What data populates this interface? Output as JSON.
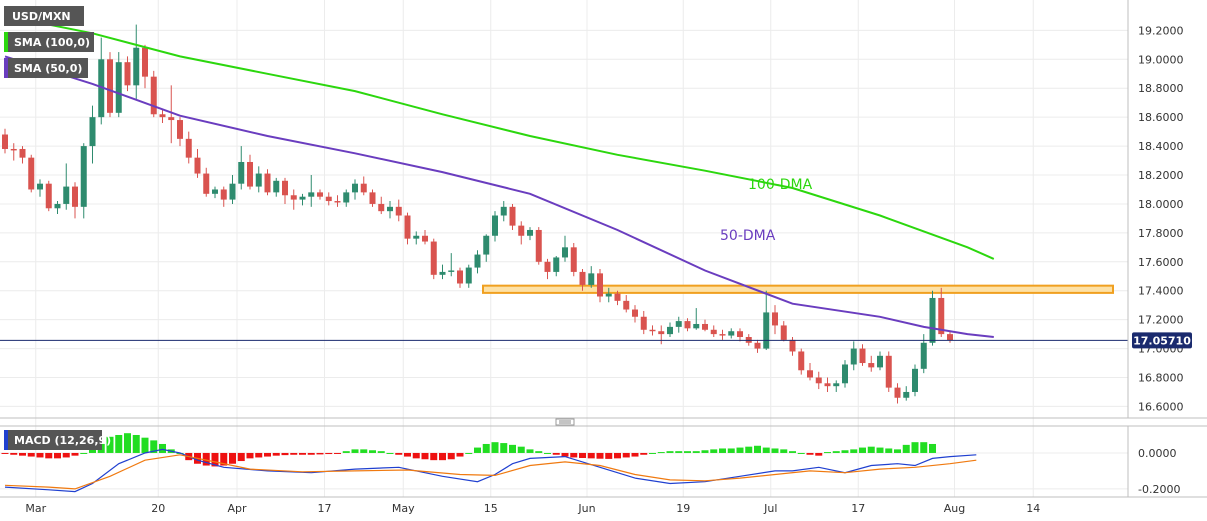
{
  "chart_data": {
    "type": "candlestick",
    "symbol": "USD/MXN",
    "indicators": {
      "sma100_label": "SMA (100,0)",
      "sma50_label": "SMA (50,0)",
      "macd_label": "MACD (12,26,9)"
    },
    "annotations": {
      "dma100": "100-DMA",
      "dma50": "50-DMA"
    },
    "last_price": 17.0571,
    "last_price_label": "17.05710",
    "price_axis": {
      "range": [
        16.52,
        19.41
      ],
      "ticks": [
        {
          "v": 19.2,
          "label": "19.2000"
        },
        {
          "v": 19.0,
          "label": "19.0000"
        },
        {
          "v": 18.8,
          "label": "18.8000"
        },
        {
          "v": 18.6,
          "label": "18.6000"
        },
        {
          "v": 18.4,
          "label": "18.4000"
        },
        {
          "v": 18.2,
          "label": "18.2000"
        },
        {
          "v": 18.0,
          "label": "18.0000"
        },
        {
          "v": 17.8,
          "label": "17.8000"
        },
        {
          "v": 17.6,
          "label": "17.6000"
        },
        {
          "v": 17.4,
          "label": "17.4000"
        },
        {
          "v": 17.2,
          "label": "17.2000"
        },
        {
          "v": 17.0,
          "label": "17.0000"
        },
        {
          "v": 16.8,
          "label": "16.8000"
        },
        {
          "v": 16.6,
          "label": "16.6000"
        }
      ]
    },
    "macd_axis": {
      "range": [
        -0.245,
        0.15
      ],
      "ticks": [
        {
          "v": 0.0,
          "label": "0.0000"
        },
        {
          "v": -0.2,
          "label": "-0.2000"
        }
      ]
    },
    "x_axis": {
      "ticks": [
        {
          "i": 1,
          "label": "Mar"
        },
        {
          "i": 15,
          "label": "20"
        },
        {
          "i": 24,
          "label": "Apr"
        },
        {
          "i": 34,
          "label": "17"
        },
        {
          "i": 43,
          "label": "May"
        },
        {
          "i": 53,
          "label": "15"
        },
        {
          "i": 64,
          "label": "Jun"
        },
        {
          "i": 75,
          "label": "19"
        },
        {
          "i": 85,
          "label": "Jul"
        },
        {
          "i": 95,
          "label": "17"
        },
        {
          "i": 106,
          "label": "Aug"
        },
        {
          "i": 115,
          "label": "14"
        }
      ]
    },
    "support_zone": {
      "from": 17.385,
      "to": 17.435
    },
    "candles": [
      [
        18.48,
        18.52,
        18.35,
        18.38
      ],
      [
        18.38,
        18.42,
        18.3,
        18.37
      ],
      [
        18.38,
        18.4,
        18.28,
        18.32
      ],
      [
        18.32,
        18.34,
        18.08,
        18.1
      ],
      [
        18.1,
        18.17,
        18.05,
        18.14
      ],
      [
        18.14,
        18.16,
        17.95,
        17.97
      ],
      [
        17.97,
        18.02,
        17.93,
        18.0
      ],
      [
        18.0,
        18.28,
        17.96,
        18.12
      ],
      [
        18.12,
        18.15,
        17.9,
        17.98
      ],
      [
        17.98,
        18.42,
        17.9,
        18.4
      ],
      [
        18.4,
        18.68,
        18.28,
        18.6
      ],
      [
        18.6,
        19.15,
        18.55,
        19.0
      ],
      [
        19.0,
        19.05,
        18.6,
        18.63
      ],
      [
        18.63,
        19.05,
        18.6,
        18.98
      ],
      [
        18.98,
        19.02,
        18.78,
        18.82
      ],
      [
        18.82,
        19.24,
        18.72,
        19.08
      ],
      [
        19.08,
        19.1,
        18.8,
        18.88
      ],
      [
        18.88,
        18.92,
        18.6,
        18.62
      ],
      [
        18.62,
        18.66,
        18.56,
        18.6
      ],
      [
        18.6,
        18.82,
        18.42,
        18.58
      ],
      [
        18.58,
        18.6,
        18.4,
        18.45
      ],
      [
        18.45,
        18.5,
        18.28,
        18.32
      ],
      [
        18.32,
        18.38,
        18.18,
        18.21
      ],
      [
        18.21,
        18.25,
        18.05,
        18.07
      ],
      [
        18.07,
        18.12,
        18.04,
        18.1
      ],
      [
        18.1,
        18.12,
        17.98,
        18.03
      ],
      [
        18.03,
        18.2,
        18.0,
        18.14
      ],
      [
        18.14,
        18.4,
        18.1,
        18.29
      ],
      [
        18.29,
        18.34,
        18.1,
        18.12
      ],
      [
        18.12,
        18.26,
        18.08,
        18.21
      ],
      [
        18.21,
        18.24,
        18.06,
        18.08
      ],
      [
        18.08,
        18.18,
        18.05,
        18.16
      ],
      [
        18.16,
        18.18,
        18.0,
        18.06
      ],
      [
        18.06,
        18.1,
        17.96,
        18.03
      ],
      [
        18.03,
        18.07,
        17.99,
        18.05
      ],
      [
        18.05,
        18.2,
        17.98,
        18.08
      ],
      [
        18.08,
        18.1,
        18.03,
        18.05
      ],
      [
        18.05,
        18.08,
        17.99,
        18.02
      ],
      [
        18.02,
        18.06,
        17.98,
        18.01
      ],
      [
        18.01,
        18.1,
        17.98,
        18.08
      ],
      [
        18.08,
        18.17,
        18.03,
        18.14
      ],
      [
        18.14,
        18.19,
        18.06,
        18.08
      ],
      [
        18.08,
        18.1,
        17.98,
        18.0
      ],
      [
        18.0,
        18.05,
        17.93,
        17.95
      ],
      [
        17.95,
        18.02,
        17.9,
        17.98
      ],
      [
        17.98,
        18.03,
        17.88,
        17.92
      ],
      [
        17.92,
        17.94,
        17.72,
        17.76
      ],
      [
        17.76,
        17.81,
        17.72,
        17.78
      ],
      [
        17.78,
        17.82,
        17.72,
        17.74
      ],
      [
        17.74,
        17.76,
        17.48,
        17.51
      ],
      [
        17.51,
        17.58,
        17.48,
        17.53
      ],
      [
        17.53,
        17.66,
        17.5,
        17.54
      ],
      [
        17.54,
        17.56,
        17.42,
        17.45
      ],
      [
        17.45,
        17.58,
        17.42,
        17.56
      ],
      [
        17.56,
        17.68,
        17.52,
        17.65
      ],
      [
        17.65,
        17.79,
        17.6,
        17.78
      ],
      [
        17.78,
        17.95,
        17.74,
        17.92
      ],
      [
        17.92,
        18.02,
        17.88,
        17.98
      ],
      [
        17.98,
        18.0,
        17.82,
        17.85
      ],
      [
        17.85,
        17.88,
        17.72,
        17.78
      ],
      [
        17.78,
        17.84,
        17.75,
        17.82
      ],
      [
        17.82,
        17.84,
        17.58,
        17.6
      ],
      [
        17.6,
        17.62,
        17.48,
        17.53
      ],
      [
        17.53,
        17.64,
        17.5,
        17.63
      ],
      [
        17.63,
        17.78,
        17.6,
        17.7
      ],
      [
        17.7,
        17.73,
        17.5,
        17.53
      ],
      [
        17.53,
        17.55,
        17.4,
        17.44
      ],
      [
        17.44,
        17.57,
        17.42,
        17.52
      ],
      [
        17.52,
        17.55,
        17.32,
        17.36
      ],
      [
        17.36,
        17.42,
        17.32,
        17.38
      ],
      [
        17.38,
        17.4,
        17.3,
        17.33
      ],
      [
        17.33,
        17.37,
        17.25,
        17.27
      ],
      [
        17.27,
        17.3,
        17.18,
        17.22
      ],
      [
        17.22,
        17.26,
        17.1,
        17.13
      ],
      [
        17.13,
        17.16,
        17.09,
        17.12
      ],
      [
        17.12,
        17.16,
        17.03,
        17.1
      ],
      [
        17.1,
        17.18,
        17.08,
        17.15
      ],
      [
        17.15,
        17.22,
        17.11,
        17.19
      ],
      [
        17.19,
        17.21,
        17.12,
        17.14
      ],
      [
        17.14,
        17.28,
        17.13,
        17.17
      ],
      [
        17.17,
        17.2,
        17.12,
        17.13
      ],
      [
        17.13,
        17.16,
        17.08,
        17.1
      ],
      [
        17.1,
        17.13,
        17.06,
        17.09
      ],
      [
        17.09,
        17.14,
        17.07,
        17.12
      ],
      [
        17.12,
        17.14,
        17.05,
        17.08
      ],
      [
        17.08,
        17.1,
        17.02,
        17.04
      ],
      [
        17.04,
        17.06,
        16.97,
        17.0
      ],
      [
        17.0,
        17.4,
        16.99,
        17.25
      ],
      [
        17.25,
        17.3,
        17.1,
        17.16
      ],
      [
        17.16,
        17.19,
        17.05,
        17.06
      ],
      [
        17.06,
        17.08,
        16.95,
        16.98
      ],
      [
        16.98,
        17.0,
        16.82,
        16.85
      ],
      [
        16.85,
        16.9,
        16.78,
        16.8
      ],
      [
        16.8,
        16.84,
        16.72,
        16.76
      ],
      [
        16.76,
        16.8,
        16.7,
        16.74
      ],
      [
        16.74,
        16.78,
        16.7,
        16.76
      ],
      [
        16.76,
        16.92,
        16.73,
        16.89
      ],
      [
        16.89,
        17.05,
        16.85,
        17.0
      ],
      [
        17.0,
        17.03,
        16.88,
        16.9
      ],
      [
        16.9,
        16.95,
        16.84,
        16.87
      ],
      [
        16.87,
        16.98,
        16.85,
        16.95
      ],
      [
        16.95,
        16.98,
        16.7,
        16.73
      ],
      [
        16.73,
        16.76,
        16.62,
        16.66
      ],
      [
        16.66,
        16.74,
        16.64,
        16.7
      ],
      [
        16.7,
        16.89,
        16.67,
        16.86
      ],
      [
        16.86,
        17.1,
        16.83,
        17.04
      ],
      [
        17.04,
        17.4,
        17.02,
        17.35
      ],
      [
        17.35,
        17.42,
        17.08,
        17.1
      ],
      [
        17.1,
        17.12,
        17.04,
        17.0571
      ]
    ],
    "sma100": [
      [
        0,
        19.3
      ],
      [
        10,
        19.18
      ],
      [
        20,
        19.02
      ],
      [
        30,
        18.9
      ],
      [
        40,
        18.78
      ],
      [
        50,
        18.62
      ],
      [
        60,
        18.47
      ],
      [
        70,
        18.34
      ],
      [
        80,
        18.23
      ],
      [
        90,
        18.11
      ],
      [
        100,
        17.92
      ],
      [
        110,
        17.7
      ],
      [
        113,
        17.62
      ]
    ],
    "sma50": [
      [
        0,
        19.02
      ],
      [
        10,
        18.83
      ],
      [
        20,
        18.61
      ],
      [
        30,
        18.47
      ],
      [
        40,
        18.35
      ],
      [
        50,
        18.22
      ],
      [
        60,
        18.07
      ],
      [
        70,
        17.82
      ],
      [
        80,
        17.54
      ],
      [
        90,
        17.31
      ],
      [
        100,
        17.22
      ],
      [
        105,
        17.15
      ],
      [
        110,
        17.1
      ],
      [
        113,
        17.08
      ]
    ],
    "macd_hist": [
      -0.005,
      -0.01,
      -0.015,
      -0.02,
      -0.025,
      -0.03,
      -0.03,
      -0.025,
      -0.015,
      0.0,
      0.02,
      0.05,
      0.09,
      0.1,
      0.11,
      0.1,
      0.085,
      0.07,
      0.05,
      0.02,
      0.0,
      -0.04,
      -0.06,
      -0.07,
      -0.075,
      -0.07,
      -0.06,
      -0.045,
      -0.03,
      -0.025,
      -0.02,
      -0.015,
      -0.012,
      -0.01,
      -0.01,
      -0.01,
      -0.008,
      -0.006,
      -0.004,
      0.01,
      0.02,
      0.02,
      0.015,
      0.01,
      0.0,
      -0.01,
      -0.02,
      -0.03,
      -0.035,
      -0.04,
      -0.04,
      -0.035,
      -0.02,
      0.0,
      0.03,
      0.05,
      0.06,
      0.055,
      0.045,
      0.035,
      0.02,
      0.01,
      0.0,
      -0.01,
      -0.02,
      -0.025,
      -0.028,
      -0.03,
      -0.032,
      -0.033,
      -0.03,
      -0.025,
      -0.02,
      -0.01,
      0.0,
      0.005,
      0.01,
      0.01,
      0.01,
      0.01,
      0.015,
      0.02,
      0.025,
      0.025,
      0.03,
      0.035,
      0.04,
      0.03,
      0.025,
      0.02,
      0.01,
      0.0,
      -0.01,
      -0.015,
      0.005,
      0.01,
      0.015,
      0.02,
      0.03,
      0.035,
      0.03,
      0.025,
      0.02,
      0.045,
      0.06,
      0.06,
      0.05
    ],
    "macd_line": [
      [
        0,
        -0.19
      ],
      [
        5,
        -0.205
      ],
      [
        8,
        -0.215
      ],
      [
        10,
        -0.17
      ],
      [
        13,
        -0.06
      ],
      [
        16,
        0.0
      ],
      [
        18,
        0.02
      ],
      [
        20,
        0.0
      ],
      [
        22,
        -0.04
      ],
      [
        25,
        -0.08
      ],
      [
        30,
        -0.1
      ],
      [
        35,
        -0.11
      ],
      [
        40,
        -0.09
      ],
      [
        45,
        -0.08
      ],
      [
        50,
        -0.13
      ],
      [
        54,
        -0.16
      ],
      [
        56,
        -0.12
      ],
      [
        58,
        -0.06
      ],
      [
        60,
        -0.03
      ],
      [
        64,
        -0.02
      ],
      [
        68,
        -0.08
      ],
      [
        72,
        -0.14
      ],
      [
        76,
        -0.17
      ],
      [
        80,
        -0.16
      ],
      [
        84,
        -0.13
      ],
      [
        88,
        -0.1
      ],
      [
        90,
        -0.1
      ],
      [
        93,
        -0.08
      ],
      [
        96,
        -0.11
      ],
      [
        99,
        -0.07
      ],
      [
        102,
        -0.06
      ],
      [
        104,
        -0.07
      ],
      [
        106,
        -0.03
      ],
      [
        108,
        -0.02
      ],
      [
        111,
        -0.01
      ]
    ],
    "signal_line": [
      [
        0,
        -0.18
      ],
      [
        5,
        -0.19
      ],
      [
        8,
        -0.2
      ],
      [
        12,
        -0.13
      ],
      [
        16,
        -0.04
      ],
      [
        20,
        -0.01
      ],
      [
        24,
        -0.05
      ],
      [
        28,
        -0.09
      ],
      [
        34,
        -0.105
      ],
      [
        40,
        -0.1
      ],
      [
        46,
        -0.095
      ],
      [
        52,
        -0.12
      ],
      [
        56,
        -0.125
      ],
      [
        60,
        -0.07
      ],
      [
        64,
        -0.05
      ],
      [
        68,
        -0.07
      ],
      [
        72,
        -0.12
      ],
      [
        76,
        -0.15
      ],
      [
        80,
        -0.155
      ],
      [
        84,
        -0.14
      ],
      [
        88,
        -0.12
      ],
      [
        92,
        -0.1
      ],
      [
        96,
        -0.11
      ],
      [
        100,
        -0.09
      ],
      [
        104,
        -0.08
      ],
      [
        108,
        -0.06
      ],
      [
        111,
        -0.04
      ]
    ]
  }
}
